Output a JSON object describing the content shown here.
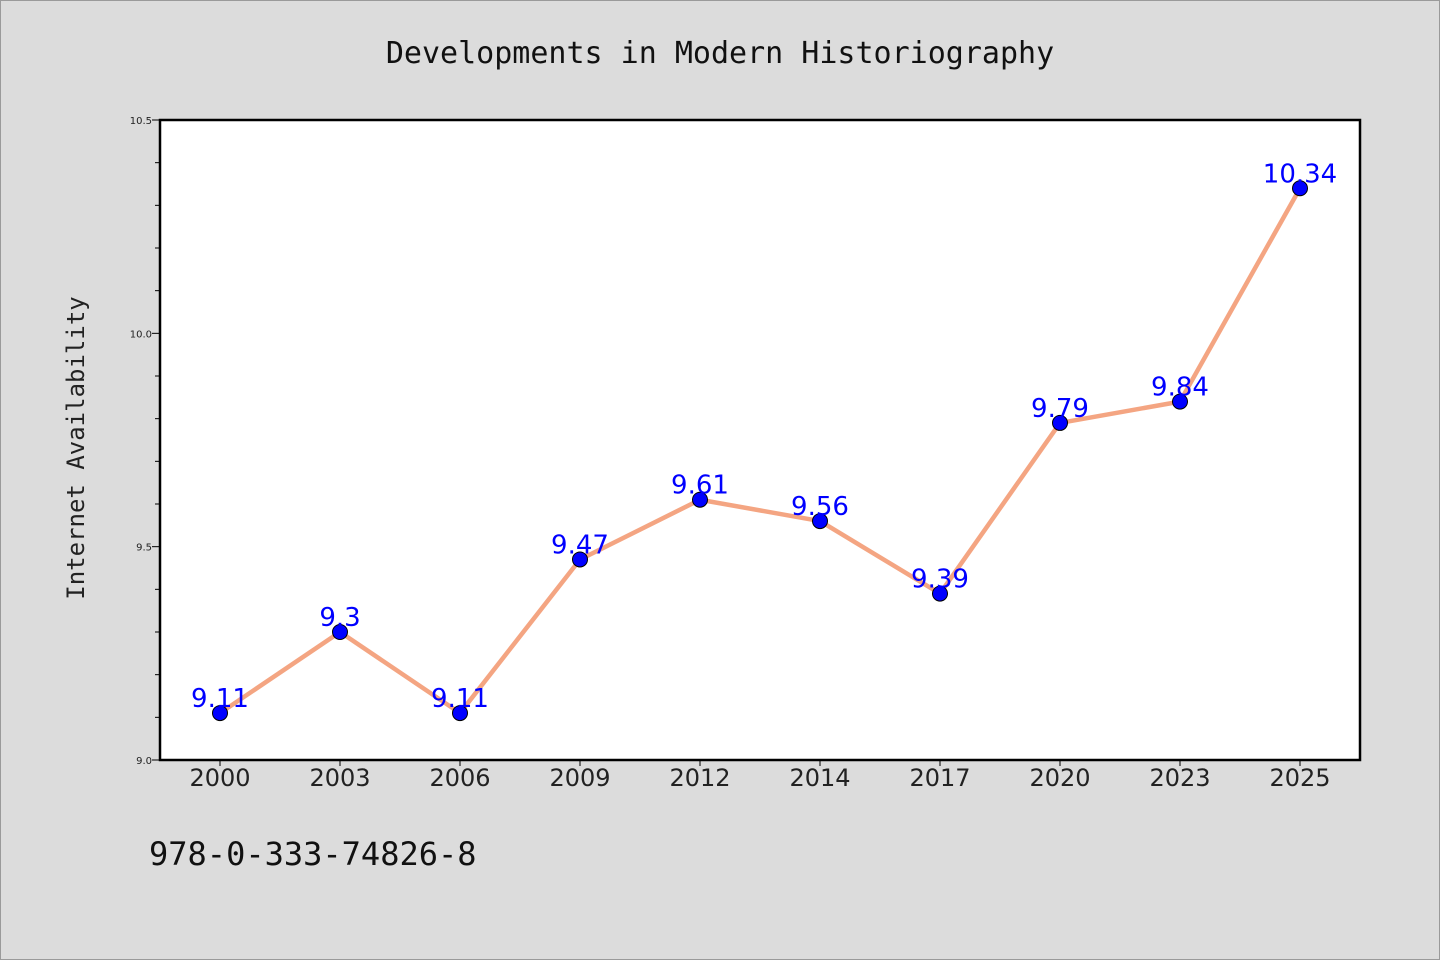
{
  "chart_data": {
    "type": "line",
    "title": "Developments in Modern Historiography",
    "xlabel": "",
    "ylabel": "Internet Availability",
    "categories": [
      "2000",
      "2003",
      "2006",
      "2009",
      "2012",
      "2014",
      "2017",
      "2020",
      "2023",
      "2025"
    ],
    "series": [
      {
        "values": [
          9.11,
          9.3,
          9.11,
          9.47,
          9.61,
          9.56,
          9.39,
          9.79,
          9.84,
          10.34
        ]
      }
    ],
    "data_labels": [
      "9.11",
      "9.3",
      "9.11",
      "9.47",
      "9.61",
      "9.56",
      "9.39",
      "9.79",
      "9.84",
      "10.34"
    ],
    "ylim": [
      9.0,
      10.5
    ],
    "yticks": [
      "9.0",
      "9.5",
      "10.0",
      "10.5"
    ],
    "yticks_values": [
      9.0,
      9.5,
      10.0,
      10.5
    ],
    "y_minor_step": 0.1,
    "grid": false,
    "line_color": "#f4a582",
    "marker_color": "#0000ff",
    "label_color": "#0000ff",
    "background": "#dcdcdc",
    "plot_background": "#ffffff"
  },
  "footer": {
    "isbn": "978-0-333-74826-8"
  }
}
